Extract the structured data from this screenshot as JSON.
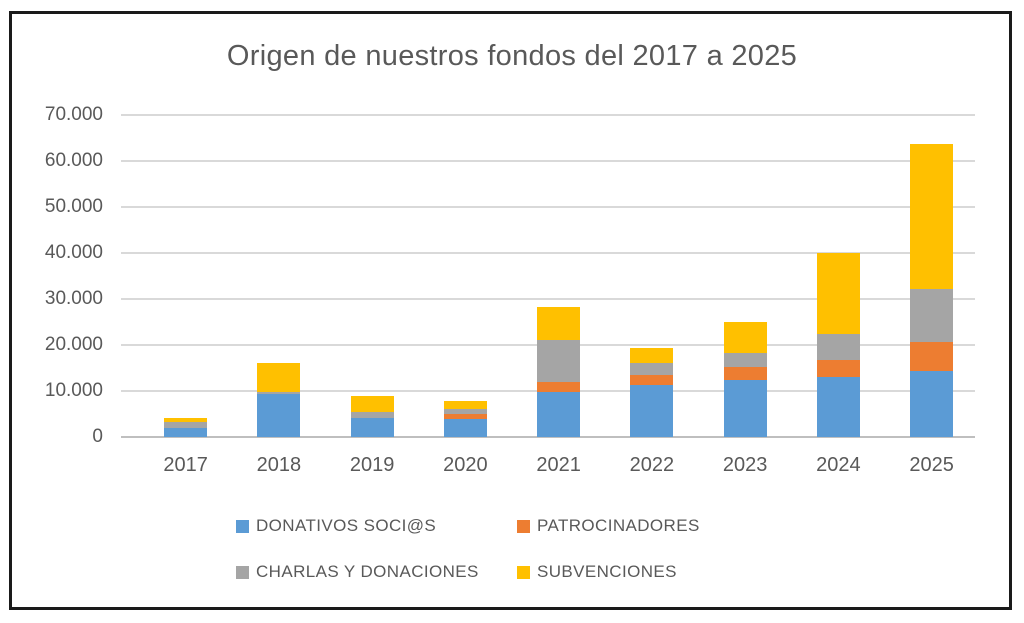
{
  "chart_data": {
    "type": "bar",
    "stacked": true,
    "title": "Origen de nuestros fondos del 2017 a 2025",
    "categories": [
      "2017",
      "2018",
      "2019",
      "2020",
      "2021",
      "2022",
      "2023",
      "2024",
      "2025"
    ],
    "series": [
      {
        "name": "DONATIVOS SOCI@S",
        "color": "#5B9BD5",
        "values": [
          2000,
          9400,
          4100,
          4000,
          9800,
          11300,
          12400,
          13000,
          14300
        ]
      },
      {
        "name": "PATROCINADORES",
        "color": "#ED7D31",
        "values": [
          0,
          0,
          0,
          1100,
          2200,
          2200,
          2900,
          3800,
          6300
        ]
      },
      {
        "name": "CHARLAS Y DONACIONES",
        "color": "#A5A5A5",
        "values": [
          1200,
          400,
          1300,
          1100,
          9000,
          2500,
          3000,
          5600,
          11500
        ]
      },
      {
        "name": "SUBVENCIONES",
        "color": "#FFC000",
        "values": [
          1000,
          6200,
          3600,
          1600,
          7200,
          3300,
          6700,
          17600,
          31500
        ]
      }
    ],
    "totals": [
      4200,
      16000,
      9000,
      7800,
      28200,
      19300,
      25000,
      40000,
      63600
    ],
    "ylim": [
      0,
      70000
    ],
    "ytick_step": 10000,
    "ytick_labels": [
      "0",
      "10.000",
      "20.000",
      "30.000",
      "40.000",
      "50.000",
      "60.000",
      "70.000"
    ],
    "grid": true,
    "legend_position": "bottom",
    "legend_rows": [
      [
        "DONATIVOS SOCI@S",
        "PATROCINADORES"
      ],
      [
        "CHARLAS Y DONACIONES",
        "SUBVENCIONES"
      ]
    ]
  },
  "colors": {
    "text": "#595959",
    "gridline": "#D9D9D9",
    "axis_line": "#BFBFBF",
    "frame_border": "#1A1A1A",
    "background": "#FFFFFF"
  }
}
